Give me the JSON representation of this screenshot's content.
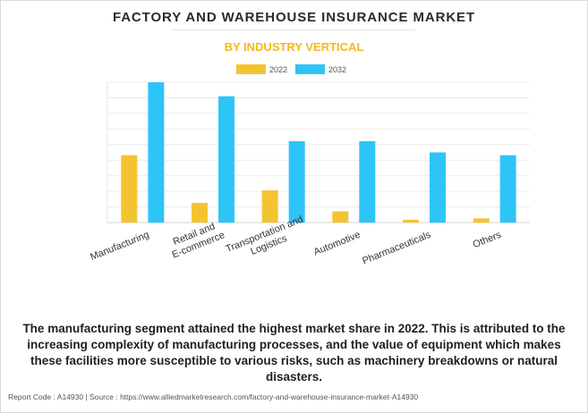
{
  "chart_data": {
    "type": "bar",
    "title": "FACTORY AND WAREHOUSE INSURANCE MARKET",
    "subtitle": "BY INDUSTRY VERTICAL",
    "categories": [
      [
        "Manufacturing"
      ],
      [
        "Retail and",
        "E-commerce"
      ],
      [
        "Transportation and",
        "Logistics"
      ],
      [
        "Automotive"
      ],
      [
        "Pharmaceuticals"
      ],
      [
        "Others"
      ]
    ],
    "series": [
      {
        "name": "2022",
        "color": "#f4c430",
        "values": [
          48,
          14,
          23,
          8,
          2,
          3
        ]
      },
      {
        "name": "2032",
        "color": "#2ec4f8",
        "values": [
          100,
          90,
          58,
          58,
          50,
          48
        ]
      }
    ],
    "ylim": [
      0,
      100
    ],
    "grid": true,
    "legend_position": "top-center",
    "xlabel": "",
    "ylabel": ""
  },
  "caption": "The manufacturing segment attained the highest market share in 2022. This is attributed to the increasing complexity of manufacturing processes, and the value of equipment which makes these facilities more susceptible to various risks, such as machinery breakdowns or natural disasters.",
  "footer": "Report Code : A14930  |  Source : https://www.alliedmarketresearch.com/factory-and-warehouse-insurance-market-A14930"
}
